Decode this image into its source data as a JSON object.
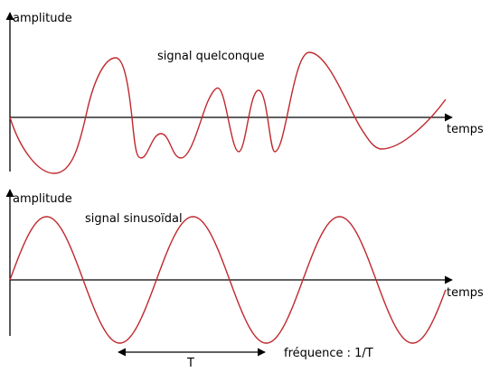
{
  "top_panel": {
    "y_label": "amplitude",
    "x_label": "temps",
    "signal_label": "signal quelconque"
  },
  "bottom_panel": {
    "y_label": "amplitude",
    "x_label": "temps",
    "signal_label": "signal sinusoïdal",
    "period_label": "T",
    "frequency_label": "fréquence : 1/T"
  },
  "colors": {
    "axis": "#000000",
    "signal": "#c0282d"
  }
}
